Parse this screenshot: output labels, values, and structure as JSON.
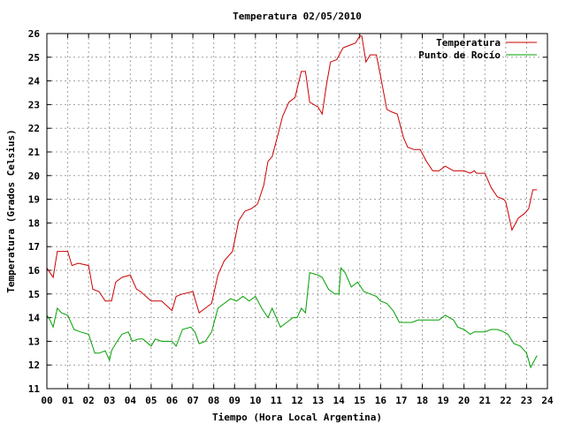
{
  "chart_data": {
    "type": "line",
    "title": "Temperatura 02/05/2010",
    "xlabel": "Tiempo (Hora Local Argentina)",
    "ylabel": "Temperatura (Grados Celsius)",
    "xlim": [
      0,
      24
    ],
    "ylim": [
      11,
      26
    ],
    "x_ticks": [
      "00",
      "01",
      "02",
      "03",
      "04",
      "05",
      "06",
      "07",
      "08",
      "09",
      "10",
      "11",
      "12",
      "13",
      "14",
      "15",
      "16",
      "17",
      "18",
      "19",
      "20",
      "21",
      "22",
      "23",
      "24"
    ],
    "y_ticks": [
      11,
      12,
      13,
      14,
      15,
      16,
      17,
      18,
      19,
      20,
      21,
      22,
      23,
      24,
      25,
      26
    ],
    "grid": true,
    "legend_position": "top-right",
    "series": [
      {
        "name": "Temperatura",
        "color": "#cc0000",
        "x": [
          0,
          0.15,
          0.3,
          0.5,
          1.0,
          1.2,
          1.5,
          2.0,
          2.2,
          2.5,
          2.8,
          3.1,
          3.3,
          3.6,
          4.0,
          4.3,
          4.5,
          5.0,
          5.2,
          5.5,
          6.0,
          6.2,
          6.5,
          7.0,
          7.1,
          7.3,
          7.6,
          7.9,
          8.2,
          8.5,
          8.9,
          9.2,
          9.5,
          9.8,
          10.1,
          10.4,
          10.6,
          10.8,
          11.1,
          11.3,
          11.6,
          11.9,
          12.2,
          12.4,
          12.6,
          13.0,
          13.2,
          13.4,
          13.6,
          13.9,
          14.2,
          14.5,
          14.8,
          15.0,
          15.1,
          15.3,
          15.5,
          15.8,
          16.0,
          16.3,
          16.5,
          16.8,
          17.1,
          17.3,
          17.6,
          17.9,
          18.2,
          18.5,
          18.8,
          19.1,
          19.3,
          19.5,
          19.7,
          20.0,
          20.3,
          20.5,
          20.6,
          20.8,
          21.0,
          21.3,
          21.6,
          21.9,
          22.0,
          22.1,
          22.3,
          22.6,
          22.9,
          23.1,
          23.3,
          23.5
        ],
        "y": [
          16.1,
          15.9,
          15.7,
          16.8,
          16.8,
          16.2,
          16.3,
          16.2,
          15.2,
          15.1,
          14.7,
          14.7,
          15.5,
          15.7,
          15.8,
          15.2,
          15.1,
          14.7,
          14.7,
          14.7,
          14.3,
          14.9,
          15.0,
          15.1,
          14.8,
          14.2,
          14.4,
          14.6,
          15.8,
          16.4,
          16.8,
          18.1,
          18.5,
          18.6,
          18.8,
          19.6,
          20.6,
          20.8,
          21.8,
          22.5,
          23.1,
          23.3,
          24.4,
          24.4,
          23.1,
          22.9,
          22.6,
          23.8,
          24.8,
          24.9,
          25.4,
          25.5,
          25.6,
          25.9,
          25.9,
          24.8,
          25.1,
          25.1,
          24.2,
          22.8,
          22.7,
          22.6,
          21.6,
          21.2,
          21.1,
          21.1,
          20.6,
          20.2,
          20.2,
          20.4,
          20.3,
          20.2,
          20.2,
          20.2,
          20.1,
          20.2,
          20.1,
          20.1,
          20.1,
          19.5,
          19.1,
          19.0,
          18.9,
          18.5,
          17.7,
          18.2,
          18.4,
          18.6,
          19.4,
          19.4
        ]
      },
      {
        "name": "Punto de Rocío",
        "color": "#00a000",
        "x": [
          0,
          0.15,
          0.3,
          0.5,
          0.7,
          1.0,
          1.3,
          1.6,
          2.0,
          2.3,
          2.5,
          2.8,
          3.0,
          3.1,
          3.3,
          3.6,
          3.9,
          4.1,
          4.4,
          4.6,
          5.0,
          5.2,
          5.5,
          6.0,
          6.2,
          6.5,
          6.9,
          7.1,
          7.3,
          7.6,
          7.9,
          8.2,
          8.5,
          8.8,
          9.1,
          9.4,
          9.7,
          10.0,
          10.3,
          10.6,
          10.8,
          11.0,
          11.2,
          11.5,
          11.8,
          12.0,
          12.2,
          12.4,
          12.6,
          13.0,
          13.2,
          13.5,
          13.8,
          14.0,
          14.1,
          14.3,
          14.6,
          14.9,
          15.2,
          15.5,
          15.8,
          16.0,
          16.3,
          16.6,
          16.9,
          17.2,
          17.5,
          17.8,
          18.1,
          18.5,
          18.8,
          19.1,
          19.3,
          19.5,
          19.7,
          20.0,
          20.3,
          20.5,
          20.8,
          21.0,
          21.3,
          21.6,
          21.9,
          22.1,
          22.4,
          22.7,
          22.9,
          23.0,
          23.2,
          23.5
        ],
        "y": [
          14.1,
          13.9,
          13.6,
          14.4,
          14.2,
          14.1,
          13.5,
          13.4,
          13.3,
          12.5,
          12.5,
          12.6,
          12.2,
          12.6,
          12.9,
          13.3,
          13.4,
          13.0,
          13.1,
          13.1,
          12.8,
          13.1,
          13.0,
          13.0,
          12.8,
          13.5,
          13.6,
          13.4,
          12.9,
          13.0,
          13.4,
          14.4,
          14.6,
          14.8,
          14.7,
          14.9,
          14.7,
          14.9,
          14.4,
          14.0,
          14.4,
          14.0,
          13.6,
          13.8,
          14.0,
          14.0,
          14.4,
          14.2,
          15.9,
          15.8,
          15.7,
          15.2,
          15.0,
          15.0,
          16.1,
          15.9,
          15.3,
          15.5,
          15.1,
          15.0,
          14.9,
          14.7,
          14.6,
          14.3,
          13.8,
          13.8,
          13.8,
          13.9,
          13.9,
          13.9,
          13.9,
          14.1,
          14.0,
          13.9,
          13.6,
          13.5,
          13.3,
          13.4,
          13.4,
          13.4,
          13.5,
          13.5,
          13.4,
          13.3,
          12.9,
          12.8,
          12.6,
          12.5,
          11.9,
          12.4
        ]
      }
    ]
  }
}
